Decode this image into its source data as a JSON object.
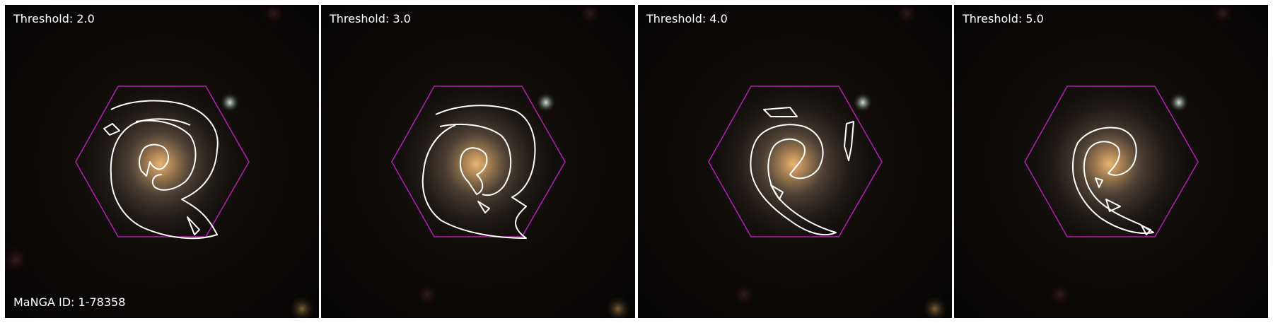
{
  "panels": [
    {
      "label": "Threshold: 2.0"
    },
    {
      "label": "Threshold: 3.0"
    },
    {
      "label": "Threshold: 4.0"
    },
    {
      "label": "Threshold: 5.0"
    }
  ],
  "manga_id": "MaNGA ID: 1-78358",
  "colors": {
    "hexagon": "#b21fb2",
    "contour": "#ffffff",
    "label_text": "#ffffff",
    "background": "#070605",
    "galaxy_core": "#d6a864"
  }
}
